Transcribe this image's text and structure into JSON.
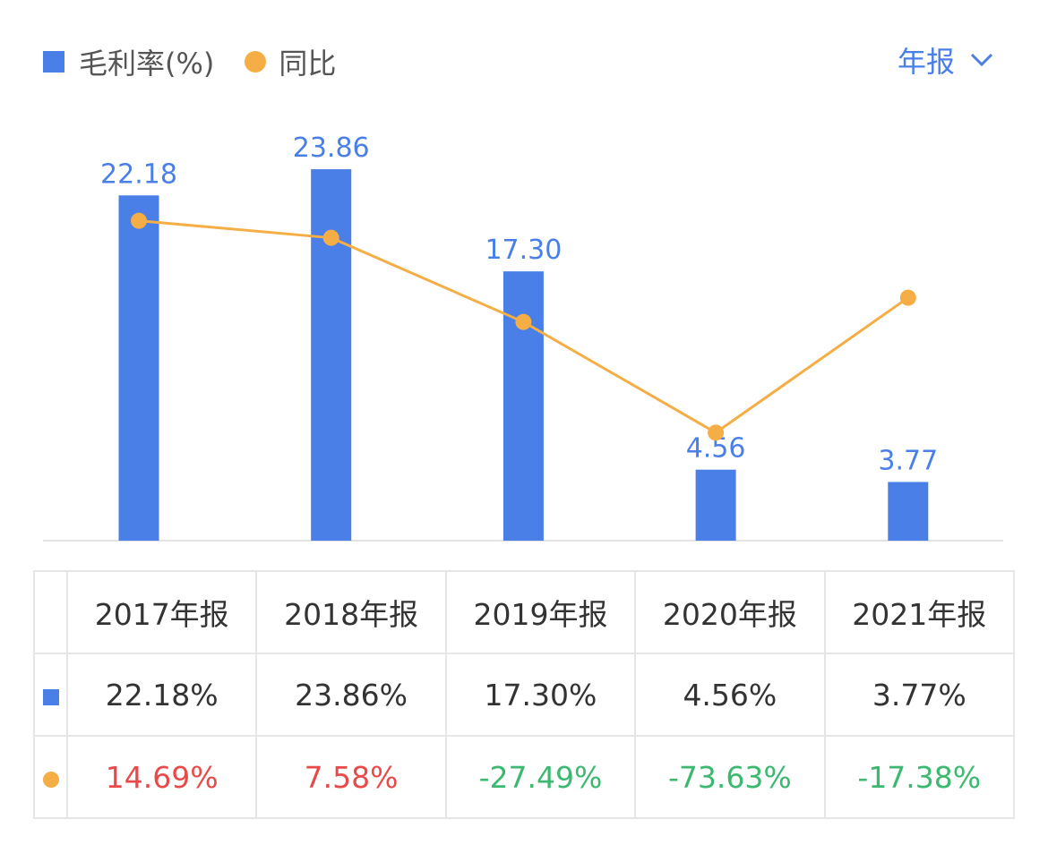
{
  "legend": {
    "bar_label": "毛利率(%)",
    "line_label": "同比"
  },
  "period_selector": {
    "label": "年报"
  },
  "colors": {
    "bar": "#4a7fe8",
    "line": "#f5ad45",
    "positive": "#e84a4a",
    "negative": "#3cb870"
  },
  "chart_data": {
    "type": "bar+line",
    "categories": [
      "2017年报",
      "2018年报",
      "2019年报",
      "2020年报",
      "2021年报"
    ],
    "series": [
      {
        "name": "毛利率(%)",
        "type": "bar",
        "values": [
          22.18,
          23.86,
          17.3,
          4.56,
          3.77
        ],
        "labels": [
          "22.18",
          "23.86",
          "17.30",
          "4.56",
          "3.77"
        ]
      },
      {
        "name": "同比",
        "type": "line",
        "values": [
          14.69,
          7.58,
          -27.49,
          -73.63,
          -17.38
        ]
      }
    ],
    "grid": false,
    "legend_position": "top-left"
  },
  "table": {
    "headers": [
      "2017年报",
      "2018年报",
      "2019年报",
      "2020年报",
      "2021年报"
    ],
    "bar_row": [
      "22.18%",
      "23.86%",
      "17.30%",
      "4.56%",
      "3.77%"
    ],
    "line_row": [
      "14.69%",
      "7.58%",
      "-27.49%",
      "-73.63%",
      "-17.38%"
    ]
  }
}
